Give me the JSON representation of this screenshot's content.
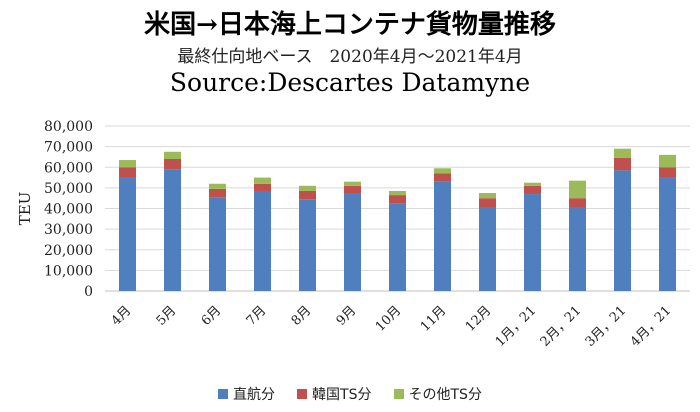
{
  "chart_data": {
    "type": "bar",
    "stacked": true,
    "title": "米国→日本海上コンテナ貨物量推移",
    "subtitle": "最終仕向地ベース　2020年4月～2021年4月",
    "source": "Source:Descartes Datamyne",
    "ylabel": "TEU",
    "xlabel": "",
    "ylim": [
      0,
      80000
    ],
    "yticks": [
      "0",
      "10,000",
      "20,000",
      "30,000",
      "40,000",
      "50,000",
      "60,000",
      "70,000",
      "80,000"
    ],
    "grid": true,
    "legend_position": "bottom",
    "categories": [
      "4月",
      "5月",
      "6月",
      "7月",
      "8月",
      "9月",
      "10月",
      "11月",
      "12月",
      "1月，21",
      "2月，21",
      "3月，21",
      "4月，21"
    ],
    "series": [
      {
        "name": "直航分",
        "color": "#4F7FBF",
        "values": [
          55000,
          59000,
          45500,
          48500,
          44500,
          47500,
          42500,
          53000,
          40500,
          47000,
          40500,
          58500,
          55000
        ]
      },
      {
        "name": "韓国TS分",
        "color": "#C0504D",
        "values": [
          5000,
          5000,
          4000,
          3500,
          4000,
          3500,
          4000,
          4000,
          4500,
          4000,
          4500,
          6000,
          5000
        ]
      },
      {
        "name": "その他TS分",
        "color": "#9BBB59",
        "values": [
          3500,
          3500,
          2500,
          3000,
          2500,
          2000,
          2000,
          2500,
          2500,
          1500,
          8500,
          4500,
          6000
        ]
      }
    ]
  }
}
